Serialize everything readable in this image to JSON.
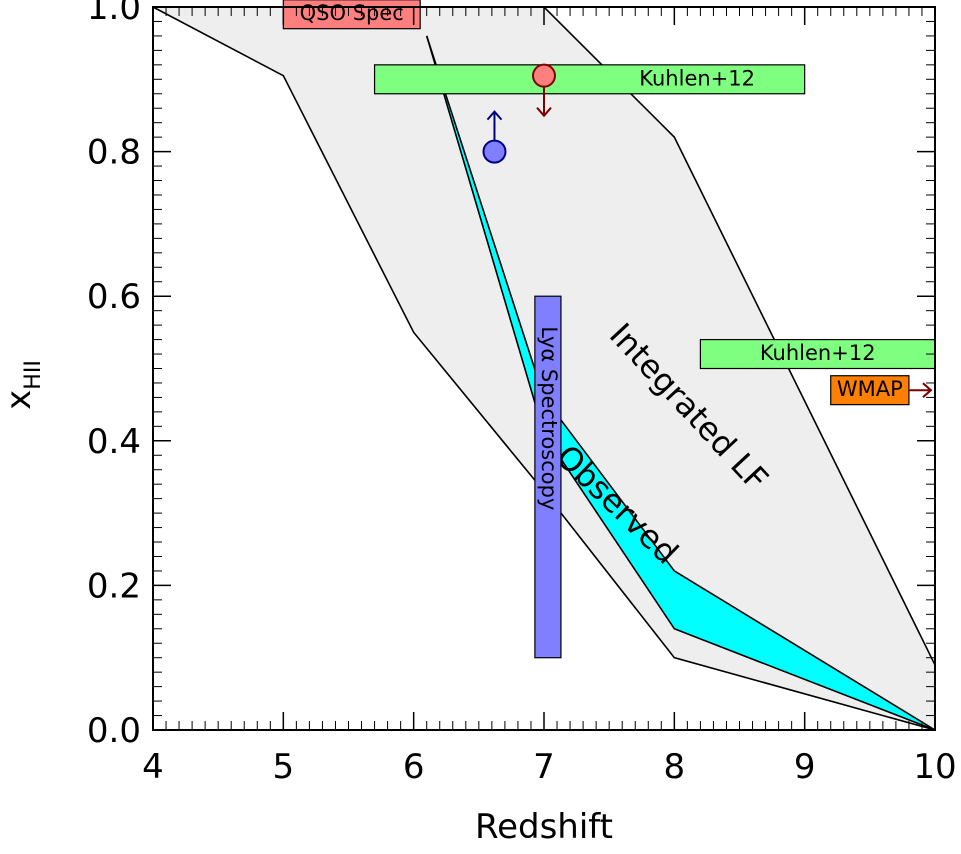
{
  "chart_data": {
    "type": "area",
    "xlabel": "Redshift",
    "ylabel": "x",
    "ylabel_subscript": "HII",
    "xlim": [
      4,
      10
    ],
    "ylim": [
      0.0,
      1.0
    ],
    "xticks": [
      4,
      5,
      6,
      7,
      8,
      9,
      10
    ],
    "yticks": [
      0.0,
      0.2,
      0.4,
      0.6,
      0.8,
      1.0
    ],
    "xtick_labels": [
      "4",
      "5",
      "6",
      "7",
      "8",
      "9",
      "10"
    ],
    "ytick_labels": [
      "0.0",
      "0.2",
      "0.4",
      "0.6",
      "0.8",
      "1.0"
    ],
    "grid": false,
    "regions": [
      {
        "label": "Integrated LF",
        "color": "#eeeeee",
        "upper": [
          [
            4,
            1.0
          ],
          [
            7,
            1.0
          ],
          [
            8,
            0.82
          ],
          [
            10,
            0.09
          ]
        ],
        "lower": [
          [
            4,
            1.0
          ],
          [
            5,
            0.905
          ],
          [
            6,
            0.55
          ],
          [
            7,
            0.33
          ],
          [
            8,
            0.1
          ],
          [
            10,
            0.0
          ]
        ]
      },
      {
        "label": "Observed",
        "color": "#00ffff",
        "upper": [
          [
            6.1,
            0.96
          ],
          [
            7,
            0.46
          ],
          [
            8,
            0.22
          ],
          [
            10,
            0.0
          ]
        ],
        "lower": [
          [
            6.1,
            0.96
          ],
          [
            7,
            0.41
          ],
          [
            8,
            0.14
          ],
          [
            10,
            0.0
          ]
        ]
      }
    ],
    "constraints": [
      {
        "label": "QSO Spec",
        "type": "box",
        "x": [
          5.0,
          6.05
        ],
        "y": [
          0.97,
          1.01
        ],
        "color": "#ff7f7f"
      },
      {
        "label": "Kuhlen+12",
        "type": "box",
        "x": [
          5.7,
          9.0
        ],
        "y": [
          0.88,
          0.92
        ],
        "color": "#7fff7f"
      },
      {
        "label": "Kuhlen+12",
        "type": "box",
        "x": [
          8.2,
          10.0
        ],
        "y": [
          0.5,
          0.54
        ],
        "color": "#7fff7f"
      },
      {
        "label": "WMAP",
        "type": "box",
        "x": [
          9.2,
          9.8
        ],
        "y": [
          0.45,
          0.49
        ],
        "color": "#ff7f00",
        "arrow": "right"
      },
      {
        "label": "Lyα Spectroscopy",
        "type": "box",
        "x": [
          6.93,
          7.13
        ],
        "y": [
          0.1,
          0.6
        ],
        "color": "#7f7fff"
      }
    ],
    "points": [
      {
        "x": 7.0,
        "y": 0.905,
        "color": "#ff7f7f",
        "arrow": "down",
        "arrow_color": "#7f0000"
      },
      {
        "x": 6.62,
        "y": 0.8,
        "color": "#7f7fff",
        "arrow": "up",
        "arrow_color": "#00007f"
      }
    ]
  }
}
